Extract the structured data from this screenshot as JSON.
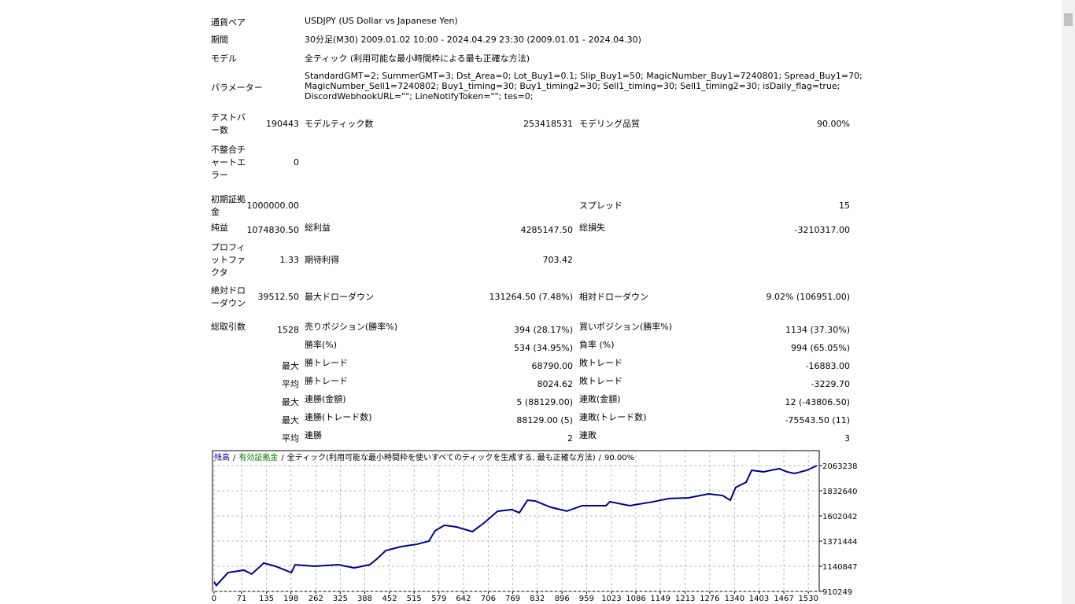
{
  "info": [
    {
      "label": "通貨ペア",
      "value": [
        "USDJPY (US Dollar vs Japanese Yen)"
      ]
    },
    {
      "label": "期間",
      "value": [
        "30分足(M30) 2009.01.02 10:00 - 2024.04.29 23:30 (2009.01.01 - 2024.04.30)"
      ]
    },
    {
      "label": "モデル",
      "value": [
        "全ティック (利用可能な最小時間枠による最も正確な方法)"
      ]
    },
    {
      "label": "パラメーター",
      "value": [
        "StandardGMT=2; SummerGMT=3; Dst_Area=0; Lot_Buy1=0.1; Slip_Buy1=50; MagicNumber_Buy1=7240801; Spread_Buy1=70;",
        "MagicNumber_Sell1=7240802; Buy1_timing=30; Buy1_timing2=30; Sell1_timing=30; Sell1_timing2=30; isDaily_flag=true;",
        "DiscordWebhookURL=\"\"; LineNotifyToken=\"\"; tes=0;"
      ]
    }
  ],
  "stats": {
    "rows": [
      [
        "テストバー数",
        "190443",
        "モデルティック数",
        "253418531",
        "モデリング品質",
        "90.00%"
      ],
      [
        "不整合チャートエラー",
        "0",
        null,
        null,
        null,
        null
      ],
      [
        "初期証拠金",
        "1000000.00",
        null,
        null,
        "スプレッド",
        "15"
      ],
      [
        "純益",
        "1074830.50",
        "総利益",
        "4285147.50",
        "総損失",
        "-3210317.00"
      ],
      [
        "プロフィットファクタ",
        "1.33",
        "期待利得",
        "703.42",
        null,
        null
      ],
      [
        "絶対ドローダウン",
        "39512.50",
        "最大ドローダウン",
        "131264.50 (7.48%)",
        "相対ドローダウン",
        "9.02% (106951.00)"
      ],
      [
        "総取引数",
        "1528",
        "売りポジション(勝率%)",
        "394 (28.17%)",
        "買いポジション(勝率%)",
        "1134 (37.30%)"
      ],
      [
        null,
        null,
        "勝率(%)",
        "534 (34.95%)",
        "負率 (%)",
        "994 (65.05%)"
      ],
      [
        null,
        "最大",
        "勝トレード",
        "68790.00",
        "敗トレード",
        "-16883.00"
      ],
      [
        null,
        "平均",
        "勝トレード",
        "8024.62",
        "敗トレード",
        "-3229.70"
      ],
      [
        null,
        "最大",
        "連勝(金額)",
        "5 (88129.00)",
        "連敗(金額)",
        "12 (-43806.50)"
      ],
      [
        null,
        "最大",
        "連勝(トレード数)",
        "88129.00 (5)",
        "連敗(トレード数)",
        "-75543.50 (11)"
      ],
      [
        null,
        "平均",
        "連勝",
        "2",
        "連敗",
        "3"
      ]
    ]
  },
  "chart": {
    "type": "line",
    "title_parts": [
      {
        "text": "残高",
        "color": "#000080"
      },
      {
        "text": "/",
        "color": "#000000"
      },
      {
        "text": "有効証拠金",
        "color": "#008000"
      },
      {
        "text": "/",
        "color": "#000000"
      },
      {
        "text": "全ティック(利用可能な最小時間枠を使いすべてのティックを生成する, 最も正確な方法)",
        "color": "#000000"
      },
      {
        "text": "/",
        "color": "#000000"
      },
      {
        "text": "90.00%",
        "color": "#000000"
      }
    ],
    "xlim": [
      -4,
      1558
    ],
    "ylim": [
      910249,
      2200000
    ],
    "xticks": [
      0,
      71,
      135,
      198,
      262,
      325,
      388,
      452,
      515,
      579,
      642,
      706,
      769,
      832,
      896,
      959,
      1023,
      1086,
      1149,
      1213,
      1276,
      1340,
      1403,
      1467,
      1530
    ],
    "yticks": [
      910249,
      1140847,
      1371444,
      1602042,
      1832640,
      2063238
    ],
    "grid": true,
    "series": [
      {
        "name": "残高",
        "color": "#00008b",
        "x": [
          0,
          6,
          36,
          77,
          97,
          128,
          158,
          199,
          209,
          259,
          320,
          361,
          401,
          421,
          442,
          482,
          523,
          553,
          569,
          593,
          624,
          665,
          695,
          730,
          766,
          786,
          807,
          827,
          867,
          908,
          948,
          1009,
          1019,
          1070,
          1131,
          1171,
          1222,
          1273,
          1309,
          1329,
          1343,
          1370,
          1384,
          1414,
          1455,
          1475,
          1495,
          1526,
          1552
        ],
        "values": [
          1000000,
          965000,
          1083000,
          1105000,
          1069000,
          1170000,
          1141000,
          1083000,
          1155000,
          1141000,
          1155000,
          1126000,
          1155000,
          1213000,
          1285000,
          1321000,
          1343000,
          1371000,
          1465000,
          1516000,
          1501000,
          1458000,
          1537000,
          1645000,
          1660000,
          1631000,
          1746000,
          1739000,
          1681000,
          1646000,
          1696000,
          1696000,
          1732000,
          1696000,
          1732000,
          1761000,
          1768000,
          1804000,
          1789000,
          1746000,
          1863000,
          1912000,
          2020000,
          2006000,
          2035000,
          2006000,
          1991000,
          2020000,
          2063000
        ]
      }
    ]
  }
}
